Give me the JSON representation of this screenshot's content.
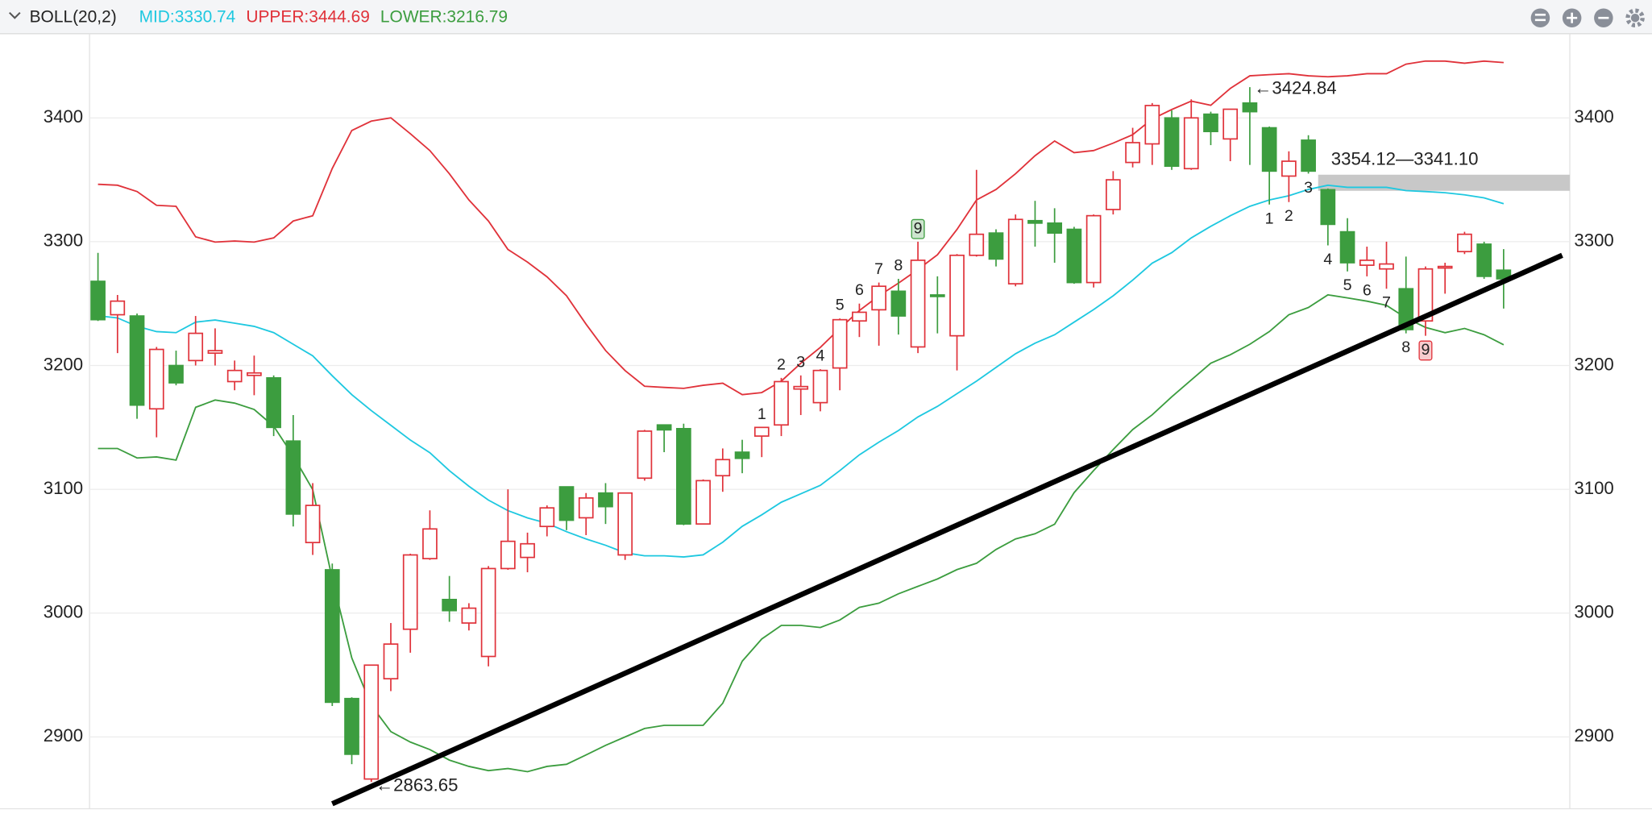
{
  "chart_data": {
    "type": "candlestick",
    "indicator": "BOLL(20,2)",
    "up_color": "#e0323a",
    "down_color": "#3c9d3f",
    "open": [
      3268,
      3241,
      3240,
      3165,
      3200,
      3204,
      3210,
      3187,
      3192,
      3190,
      3139,
      3057,
      3035,
      2931,
      2866,
      2947,
      2987,
      3044,
      3011,
      2992,
      2965,
      3036,
      3045,
      3070,
      3102,
      3077,
      3097,
      3047,
      3109,
      3152,
      3149,
      3072,
      3111,
      3130,
      3143,
      3152,
      3181,
      3170,
      3198,
      3236,
      3245,
      3260,
      3215,
      3257,
      3224,
      3289,
      3307,
      3266,
      3317,
      3315,
      3310,
      3267,
      3326,
      3364,
      3379,
      3400,
      3359,
      3403,
      3383,
      3412,
      3392,
      3353,
      3382,
      3342,
      3308,
      3281,
      3278,
      3262,
      3236,
      3279,
      3292,
      3298,
      3277
    ],
    "high": [
      3291,
      3257,
      3242,
      3215,
      3212,
      3240,
      3230,
      3204,
      3208,
      3192,
      3160,
      3105,
      3040,
      2932,
      2958,
      2992,
      3048,
      3083,
      3030,
      3008,
      3038,
      3100,
      3065,
      3087,
      3102,
      3097,
      3105,
      3097,
      3148,
      3152,
      3153,
      3108,
      3133,
      3140,
      3150,
      3190,
      3192,
      3197,
      3238,
      3250,
      3267,
      3270,
      3300,
      3272,
      3290,
      3358,
      3310,
      3322,
      3333,
      3327,
      3312,
      3322,
      3357,
      3392,
      3412,
      3406,
      3415,
      3405,
      3407,
      3424.84,
      3393,
      3373,
      3386,
      3343,
      3319,
      3296,
      3300,
      3288,
      3280,
      3283,
      3308,
      3300,
      3294
    ],
    "low": [
      3236,
      3210,
      3157,
      3142,
      3184,
      3200,
      3200,
      3180,
      3176,
      3143,
      3070,
      3047,
      2925,
      2878,
      2863.65,
      2937,
      2968,
      3043,
      2993,
      2986,
      2957,
      3035,
      3033,
      3062,
      3067,
      3063,
      3072,
      3043,
      3107,
      3130,
      3071,
      3072,
      3098,
      3113,
      3126,
      3143,
      3160,
      3163,
      3180,
      3223,
      3216,
      3225,
      3210,
      3226,
      3196,
      3288,
      3280,
      3264,
      3296,
      3283,
      3266,
      3263,
      3322,
      3360,
      3362,
      3358,
      3358,
      3378,
      3365,
      3362,
      3330,
      3332,
      3355,
      3297,
      3276,
      3272,
      3262,
      3226,
      3224,
      3258,
      3290,
      3270,
      3246
    ],
    "close": [
      3237,
      3252,
      3168,
      3213,
      3186,
      3226,
      3212,
      3196,
      3194,
      3150,
      3080,
      3087,
      2928,
      2886,
      2958,
      2975,
      3047,
      3068,
      3002,
      3004,
      3036,
      3058,
      3056,
      3085,
      3075,
      3093,
      3086,
      3097,
      3147,
      3148,
      3072,
      3107,
      3124,
      3125,
      3150,
      3187,
      3183,
      3196,
      3237,
      3243,
      3264,
      3240,
      3285,
      3256,
      3289,
      3306,
      3286,
      3318,
      3315,
      3307,
      3267,
      3321,
      3350,
      3380,
      3410,
      3361,
      3400,
      3389,
      3407,
      3405,
      3357,
      3365,
      3357,
      3314,
      3283,
      3285,
      3282,
      3229,
      3278,
      3280,
      3306,
      3272,
      3270
    ],
    "series": [
      {
        "name": "MID:3330.74",
        "color": "#1ec8e0",
        "values": [
          3240.1,
          3238.4,
          3231.6,
          3227.4,
          3226.5,
          3235,
          3236.7,
          3234.2,
          3231.6,
          3226.5,
          3217.2,
          3207.8,
          3191.7,
          3176.4,
          3163.6,
          3151.7,
          3139.8,
          3129.6,
          3115.1,
          3102.4,
          3091.3,
          3082.8,
          3076.9,
          3072.6,
          3065.8,
          3059.9,
          3054.8,
          3048.8,
          3046.3,
          3046.3,
          3045.4,
          3047.1,
          3057.3,
          3070.1,
          3079.4,
          3089.6,
          3096.4,
          3103.2,
          3115.1,
          3127.9,
          3138.1,
          3147.4,
          3158.5,
          3167,
          3177.2,
          3187.4,
          3198.5,
          3209.5,
          3218,
          3224.8,
          3235,
          3245.2,
          3256.3,
          3269,
          3282.7,
          3291.2,
          3303.1,
          3312.4,
          3320.9,
          3328.6,
          3333.7,
          3337.1,
          3342.2,
          3345.6,
          3343.9,
          3343.9,
          3343.9,
          3341.3,
          3340.5,
          3339.6,
          3337.9,
          3335.4,
          3330.74
        ]
      },
      {
        "name": "UPPER:3444.69",
        "color": "#e0323a",
        "values": [
          3346.4,
          3345.6,
          3340.5,
          3329.4,
          3328.6,
          3303.9,
          3299.7,
          3300.5,
          3299.7,
          3303.1,
          3316.7,
          3320.9,
          3359.2,
          3389.8,
          3397.4,
          3400,
          3387.2,
          3373.6,
          3354.9,
          3333.7,
          3316.7,
          3293.7,
          3283.5,
          3271.6,
          3256.3,
          3233.3,
          3212.1,
          3195.9,
          3183.2,
          3182.3,
          3181.5,
          3184,
          3185.7,
          3176.4,
          3178.1,
          3187.4,
          3201.9,
          3214.6,
          3229.9,
          3244.4,
          3256.3,
          3266.5,
          3277.6,
          3289.5,
          3309.9,
          3333.7,
          3342.2,
          3354.9,
          3369.4,
          3381.3,
          3371.9,
          3373.6,
          3379.6,
          3386.4,
          3399.1,
          3406.8,
          3413.6,
          3410.2,
          3423.8,
          3434,
          3434.9,
          3435.7,
          3434,
          3433.2,
          3434,
          3435.7,
          3435.7,
          3443.4,
          3445.9,
          3445.9,
          3444.2,
          3445.9,
          3444.69
        ]
      },
      {
        "name": "LOWER:3216.79",
        "color": "#3c9d3f",
        "values": [
          3133,
          3133,
          3125.3,
          3126.2,
          3123.6,
          3166.2,
          3172.1,
          3169.6,
          3164.5,
          3150.9,
          3127,
          3099.8,
          3027.6,
          2963.8,
          2925.5,
          2904.3,
          2895.8,
          2889.8,
          2881.3,
          2876.2,
          2872.8,
          2874.5,
          2871.9,
          2876.2,
          2877.9,
          2885.5,
          2893.2,
          2900,
          2906.8,
          2909.4,
          2909.4,
          2909.4,
          2927.2,
          2961.2,
          2979.1,
          2990.1,
          2990.1,
          2988.4,
          2994.4,
          3004.6,
          3008,
          3015.6,
          3021.6,
          3027.6,
          3035.2,
          3040.3,
          3051.4,
          3059.9,
          3064.1,
          3071.8,
          3097.3,
          3115.1,
          3132.1,
          3148.3,
          3160.2,
          3174.7,
          3188.3,
          3201.9,
          3208.7,
          3217.2,
          3227.4,
          3241,
          3246.9,
          3257.1,
          3254.6,
          3252,
          3248.6,
          3238.4,
          3230.8,
          3226.5,
          3229.9,
          3224.8,
          3216.79
        ]
      }
    ],
    "ylim": [
      2842,
      3468
    ],
    "yticks": [
      2900,
      3000,
      3100,
      3200,
      3300,
      3400
    ],
    "grid": true,
    "trendline": {
      "color": "#000000",
      "points": [
        {
          "index": 12,
          "value": 2846
        },
        {
          "index": 75,
          "value": 3289
        }
      ]
    },
    "zone": {
      "label": "3354.12—3341.10",
      "high": 3354.12,
      "low": 3341.1,
      "start": 63,
      "color": "#c8c8c8"
    },
    "extremes": [
      {
        "index": 59,
        "field": "high",
        "label": "←3424.84"
      },
      {
        "index": 14,
        "field": "low",
        "label": "←2863.65"
      }
    ],
    "count_colors": {
      "above": "#3c9d3f",
      "below": "#e0323a"
    },
    "counts": [
      {
        "index": 34,
        "count": 1,
        "side": "above"
      },
      {
        "index": 35,
        "count": 2,
        "side": "above"
      },
      {
        "index": 36,
        "count": 3,
        "side": "above"
      },
      {
        "index": 37,
        "count": 4,
        "side": "above"
      },
      {
        "index": 38,
        "count": 5,
        "side": "above"
      },
      {
        "index": 39,
        "count": 6,
        "side": "above"
      },
      {
        "index": 40,
        "count": 7,
        "side": "above"
      },
      {
        "index": 41,
        "count": 8,
        "side": "above"
      },
      {
        "index": 42,
        "count": 9,
        "side": "above"
      },
      {
        "index": 60,
        "count": 1,
        "side": "below"
      },
      {
        "index": 61,
        "count": 2,
        "side": "below"
      },
      {
        "index": 62,
        "count": 3,
        "side": "below"
      },
      {
        "index": 63,
        "count": 4,
        "side": "below"
      },
      {
        "index": 64,
        "count": 5,
        "side": "below"
      },
      {
        "index": 65,
        "count": 6,
        "side": "below"
      },
      {
        "index": 66,
        "count": 7,
        "side": "below"
      },
      {
        "index": 67,
        "count": 8,
        "side": "below"
      },
      {
        "index": 68,
        "count": 9,
        "side": "below"
      }
    ]
  }
}
